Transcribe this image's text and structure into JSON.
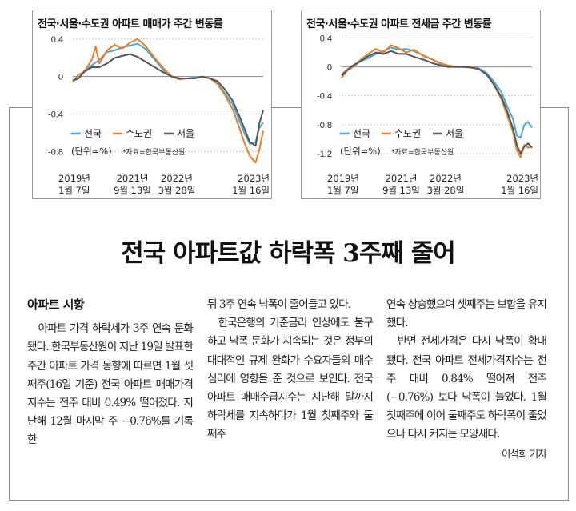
{
  "headline": "전국 아파트값 하락폭 3주째 줄어",
  "section_title": "아파트 시황",
  "byline": "이석희 기자",
  "columns": [
    [
      "아파트 가격 하락세가 3주 연속 둔화됐다. 한국부동산원이 지난 19일 발표한 주간 아파트 가격 동향에 따르면 1월 셋째주(16일 기준) 전국 아파트 매매가격지수는 전주 대비 0.49% 떨어졌다. 지난해 12월 마지막 주 −0.76%를 기록한"
    ],
    [
      "뒤 3주 연속 낙폭이 줄어들고 있다.",
      "한국은행의 기준금리 인상에도 불구하고 낙폭 둔화가 지속되는 것은 정부의 대대적인 규제 완화가 수요자들의 매수 심리에 영향을 준 것으로 보인다. 전국 아파트 매매수급지수는 지난해 말까지 하락세를 지속하다가 1월 첫째주와 둘째주"
    ],
    [
      "연속 상승했으며 셋째주는 보합을 유지했다.",
      "반면 전세가격은 다시 낙폭이 확대됐다. 전국 아파트 전세가격지수는 전주 대비 0.84% 떨어져 전주(−0.76%) 보다 낙폭이 늘었다. 1월 첫째주에 이어 둘째주도 하락폭이 줄었으나 다시 커지는 모양새다."
    ]
  ],
  "colors": {
    "nationwide": "#4aa8dc",
    "capital_area": "#ef7d22",
    "seoul": "#555555",
    "grid": "#bdbdbd"
  },
  "chart_data": [
    {
      "type": "line",
      "title": "전국·서울·수도권 아파트 매매가 주간 변동률",
      "unit_note": "(단위=%)",
      "source_note": "*자료=한국부동산원",
      "y_ticks": [
        "0.4",
        "0",
        "-0.4",
        "-0.8"
      ],
      "ylim": [
        -0.9,
        0.45
      ],
      "x_labels": [
        [
          "2019년",
          "1월 7일"
        ],
        [
          "2021년",
          "9월 13일"
        ],
        [
          "2022년",
          "3월 28일"
        ],
        [
          "2023년",
          "1월 16일"
        ]
      ],
      "x_label_positions": [
        0.0,
        0.313,
        0.546,
        1.0
      ],
      "grid": true,
      "legend": "bottom-left",
      "series": [
        {
          "name": "전국",
          "color_key": "nationwide",
          "t": [
            0,
            0.03,
            0.06,
            0.1,
            0.14,
            0.18,
            0.22,
            0.26,
            0.3,
            0.34,
            0.38,
            0.43,
            0.48,
            0.52,
            0.56,
            0.6,
            0.64,
            0.68,
            0.72,
            0.76,
            0.8,
            0.84,
            0.87,
            0.9,
            0.93,
            0.96,
            0.98,
            1.0
          ],
          "values": [
            -0.05,
            -0.02,
            0.06,
            0.12,
            0.18,
            0.26,
            0.28,
            0.31,
            0.33,
            0.35,
            0.3,
            0.18,
            0.06,
            0.0,
            -0.02,
            -0.02,
            -0.01,
            0.0,
            -0.02,
            -0.07,
            -0.18,
            -0.3,
            -0.45,
            -0.6,
            -0.72,
            -0.7,
            -0.55,
            -0.49
          ]
        },
        {
          "name": "수도권",
          "color_key": "capital_area",
          "t": [
            0,
            0.03,
            0.06,
            0.1,
            0.12,
            0.14,
            0.18,
            0.22,
            0.26,
            0.3,
            0.34,
            0.38,
            0.43,
            0.48,
            0.52,
            0.56,
            0.6,
            0.64,
            0.68,
            0.72,
            0.76,
            0.8,
            0.84,
            0.87,
            0.9,
            0.93,
            0.96,
            0.98,
            1.0
          ],
          "values": [
            -0.06,
            0.02,
            0.05,
            0.18,
            0.32,
            0.14,
            0.28,
            0.34,
            0.3,
            0.36,
            0.4,
            0.33,
            0.2,
            0.08,
            0.0,
            -0.03,
            -0.02,
            -0.02,
            0.0,
            -0.02,
            -0.08,
            -0.2,
            -0.35,
            -0.52,
            -0.7,
            -0.85,
            -0.92,
            -0.78,
            -0.58
          ]
        },
        {
          "name": "서울",
          "color_key": "seoul",
          "t": [
            0,
            0.03,
            0.06,
            0.1,
            0.14,
            0.18,
            0.22,
            0.26,
            0.3,
            0.34,
            0.38,
            0.43,
            0.48,
            0.52,
            0.56,
            0.6,
            0.64,
            0.68,
            0.72,
            0.76,
            0.8,
            0.84,
            0.87,
            0.9,
            0.93,
            0.96,
            0.98,
            1.0
          ],
          "values": [
            -0.04,
            -0.02,
            0.05,
            0.1,
            0.1,
            0.14,
            0.2,
            0.22,
            0.24,
            0.21,
            0.16,
            0.1,
            0.04,
            0.0,
            -0.02,
            -0.02,
            -0.02,
            0.0,
            -0.02,
            -0.05,
            -0.14,
            -0.26,
            -0.4,
            -0.55,
            -0.7,
            -0.74,
            -0.5,
            -0.36
          ]
        }
      ]
    },
    {
      "type": "line",
      "title": "전국·서울·수도권 아파트 전세금 주간 변동률",
      "unit_note": "(단위=%)",
      "source_note": "*자료=한국부동산원",
      "y_ticks": [
        "0.4",
        "0",
        "-0.4",
        "-0.8",
        "-1.2"
      ],
      "ylim": [
        -1.3,
        0.45
      ],
      "x_labels": [
        [
          "2019년",
          "1월 7일"
        ],
        [
          "2021년",
          "9월 13일"
        ],
        [
          "2022년",
          "3월 28일"
        ],
        [
          "2023년",
          "1월 16일"
        ]
      ],
      "x_label_positions": [
        0.0,
        0.313,
        0.546,
        1.0
      ],
      "grid": true,
      "legend": "bottom-left",
      "series": [
        {
          "name": "전국",
          "color_key": "nationwide",
          "t": [
            0,
            0.03,
            0.06,
            0.1,
            0.14,
            0.18,
            0.22,
            0.26,
            0.3,
            0.34,
            0.38,
            0.43,
            0.48,
            0.52,
            0.56,
            0.6,
            0.64,
            0.68,
            0.72,
            0.76,
            0.8,
            0.84,
            0.87,
            0.9,
            0.92,
            0.94,
            0.96,
            0.98,
            1.0
          ],
          "values": [
            -0.1,
            -0.05,
            0.0,
            0.08,
            0.12,
            0.18,
            0.22,
            0.27,
            0.24,
            0.25,
            0.22,
            0.16,
            0.1,
            0.04,
            0.02,
            0.0,
            0.0,
            0.0,
            -0.02,
            -0.08,
            -0.2,
            -0.35,
            -0.55,
            -0.72,
            -0.95,
            -0.98,
            -0.8,
            -0.76,
            -0.84
          ]
        },
        {
          "name": "수도권",
          "color_key": "capital_area",
          "t": [
            0,
            0.03,
            0.06,
            0.1,
            0.14,
            0.18,
            0.22,
            0.26,
            0.3,
            0.34,
            0.38,
            0.43,
            0.48,
            0.52,
            0.56,
            0.6,
            0.64,
            0.68,
            0.72,
            0.76,
            0.8,
            0.84,
            0.87,
            0.9,
            0.92,
            0.94,
            0.96,
            0.98,
            1.0
          ],
          "values": [
            -0.15,
            -0.05,
            0.0,
            0.1,
            0.18,
            0.25,
            0.2,
            0.3,
            0.26,
            0.2,
            0.24,
            0.15,
            0.1,
            0.05,
            0.02,
            0.0,
            0.0,
            0.0,
            -0.03,
            -0.1,
            -0.25,
            -0.45,
            -0.68,
            -0.9,
            -1.15,
            -1.25,
            -1.08,
            -1.12,
            -1.1
          ]
        },
        {
          "name": "서울",
          "color_key": "seoul",
          "t": [
            0,
            0.03,
            0.06,
            0.1,
            0.14,
            0.18,
            0.22,
            0.26,
            0.3,
            0.34,
            0.38,
            0.43,
            0.48,
            0.52,
            0.56,
            0.6,
            0.64,
            0.68,
            0.72,
            0.76,
            0.8,
            0.84,
            0.87,
            0.9,
            0.92,
            0.94,
            0.96,
            0.98,
            1.0
          ],
          "values": [
            -0.12,
            -0.04,
            0.02,
            0.08,
            0.15,
            0.2,
            0.18,
            0.22,
            0.18,
            0.18,
            0.14,
            0.1,
            0.05,
            0.02,
            0.0,
            0.0,
            0.0,
            -0.01,
            -0.03,
            -0.1,
            -0.24,
            -0.42,
            -0.62,
            -0.85,
            -1.08,
            -1.2,
            -1.1,
            -1.06,
            -1.12
          ]
        }
      ]
    }
  ]
}
